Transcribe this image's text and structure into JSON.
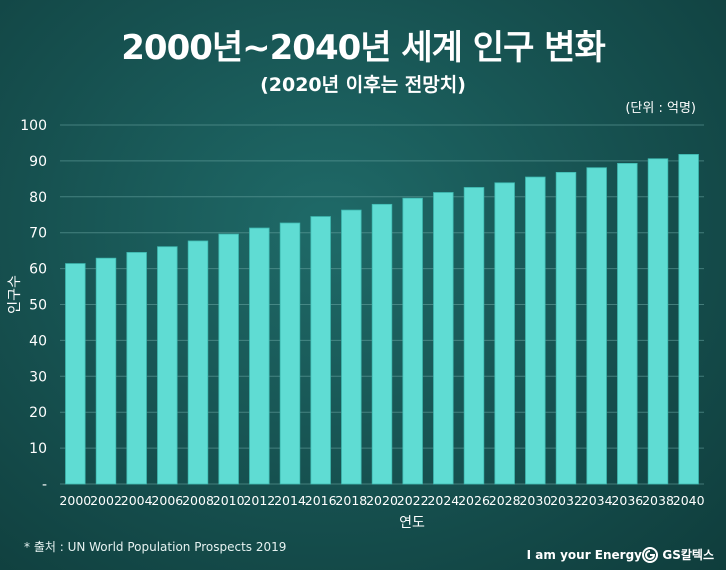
{
  "header": {
    "title": "2000년~2040년 세계 인구 변화",
    "subtitle": "(2020년 이후는 전망치)",
    "unit": "(단위 : 억명)"
  },
  "footer": {
    "source": "* 출처 : UN World Population Prospects 2019",
    "tagline": "I am your Energy",
    "brand": "GS칼텍스"
  },
  "colors": {
    "bar": "#5fdcd3",
    "bar_edge": "#3fb9b1",
    "grid": "#6aa6a3",
    "background": "#16504f"
  },
  "chart_data": {
    "type": "bar",
    "xlabel": "연도",
    "ylabel": "인구수",
    "ylim": [
      0,
      100
    ],
    "yticks": [
      "-",
      "10",
      "20",
      "30",
      "40",
      "50",
      "60",
      "70",
      "80",
      "90",
      "100"
    ],
    "grid": true,
    "categories": [
      "2000",
      "2002",
      "2004",
      "2006",
      "2008",
      "2010",
      "2012",
      "2014",
      "2016",
      "2018",
      "2020",
      "2022",
      "2024",
      "2026",
      "2028",
      "2030",
      "2032",
      "2034",
      "2036",
      "2038",
      "2040"
    ],
    "values": [
      61.4,
      62.9,
      64.5,
      66.1,
      67.7,
      69.6,
      71.3,
      72.7,
      74.5,
      76.3,
      77.9,
      79.6,
      81.2,
      82.6,
      83.9,
      85.5,
      86.8,
      88.1,
      89.3,
      90.6,
      91.8
    ]
  }
}
